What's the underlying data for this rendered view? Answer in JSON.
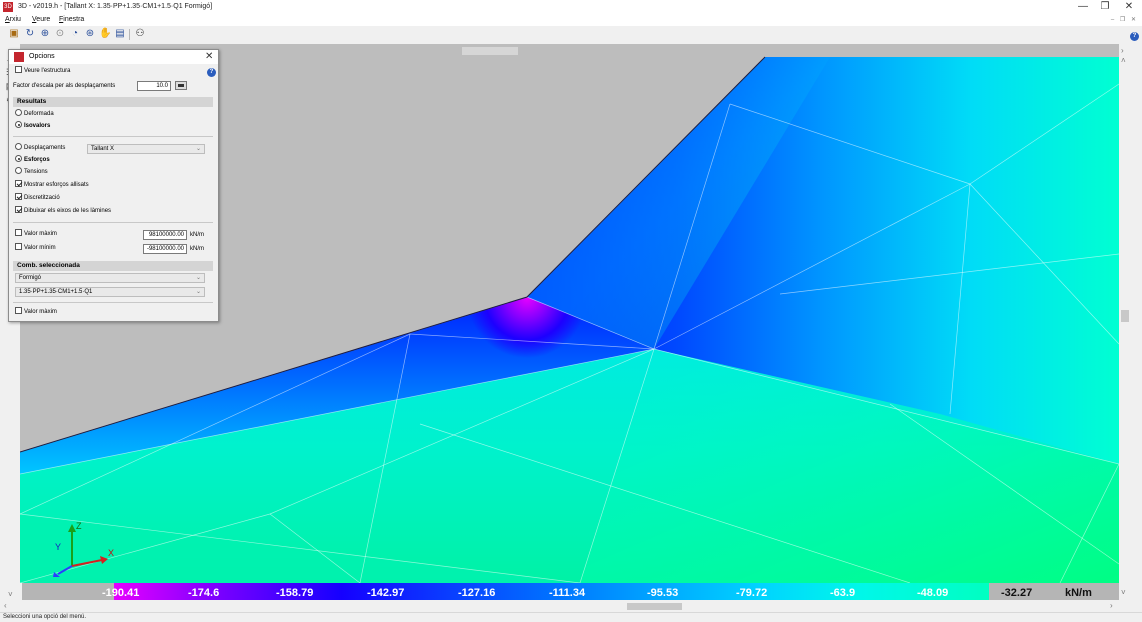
{
  "window": {
    "app_icon": "3D",
    "title": "3D - v2019.h - [Tallant X: 1.35·PP+1.35·CM1+1.5·Q1 Formigó]",
    "minimize": "—",
    "maximize": "❐",
    "close": "✕"
  },
  "menu": {
    "items": [
      "Arxiu",
      "Veure",
      "Finestra"
    ],
    "mdi_controls": "– ❐ ✕"
  },
  "toolbar": {
    "icons": [
      "save-icon",
      "rotate-icon",
      "zoom-window-icon",
      "zoom-icon",
      "redraw-icon",
      "pan-icon",
      "hand-icon",
      "layers-icon",
      "binoculars-icon"
    ],
    "help_label": "?"
  },
  "dialog": {
    "title": "Opcions",
    "close": "✕",
    "help_label": "?",
    "show_structure": "Veure l'estructura",
    "scale_label": "Factor d'escala per als desplaçaments",
    "scale_value": "10.0",
    "results_header": "Resultats",
    "deformada": "Deformada",
    "isovalors": "Isovalors",
    "desplacaments": "Desplaçaments",
    "force_select": "Tallant X",
    "esforcos": "Esforços",
    "tensions": "Tensions",
    "show_smoothed": "Mostrar esforços allisats",
    "discretization": "Discretització",
    "draw_axes": "Dibuixar els eixos de les làmines",
    "max_label": "Valor màxim",
    "max_value": "98100000.00",
    "max_unit": "kN/m",
    "min_label": "Valor mínim",
    "min_value": "-98100000.00",
    "min_unit": "kN/m",
    "comb_header": "Comb. seleccionada",
    "material_select": "Formigó",
    "comb_select": "1.35·PP+1.35·CM1+1.5·Q1",
    "max_label_2": "Valor màxim"
  },
  "axes": {
    "z": "Z",
    "y": "Y",
    "x": "X"
  },
  "legend": {
    "values": [
      "-190.41",
      "-174.6",
      "-158.79",
      "-142.97",
      "-127.16",
      "-111.34",
      "-95.53",
      "-79.72",
      "-63.9",
      "-48.09",
      "-32.27"
    ],
    "unit": "kN/m"
  },
  "status": {
    "text": "Seleccioni una opció del menú."
  },
  "colors": {
    "min": "#e600ff",
    "mid": "#0071ff",
    "max": "#00ffc1",
    "background": "#bdbdbd"
  }
}
